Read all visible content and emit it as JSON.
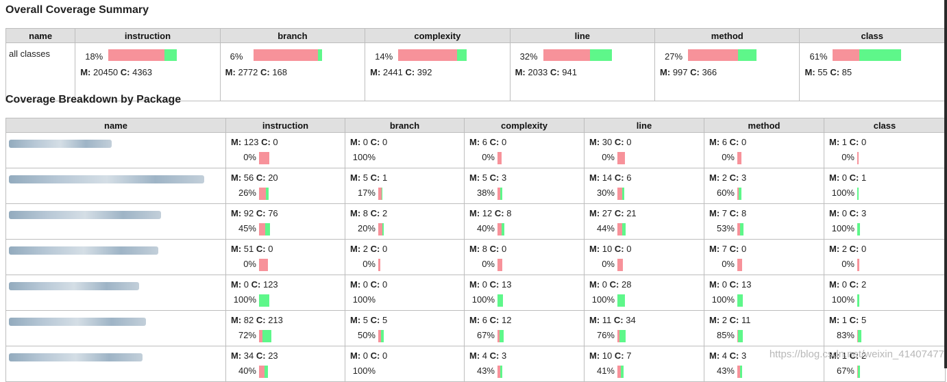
{
  "summary": {
    "title": "Overall Coverage Summary",
    "headers": [
      "name",
      "instruction",
      "branch",
      "complexity",
      "line",
      "method",
      "class"
    ],
    "row": {
      "name": "all classes",
      "cells": [
        {
          "pct": "18%",
          "missed": "20450",
          "covered": "4363",
          "fraction": 0.18
        },
        {
          "pct": "6%",
          "missed": "2772",
          "covered": "168",
          "fraction": 0.06
        },
        {
          "pct": "14%",
          "missed": "2441",
          "covered": "392",
          "fraction": 0.14
        },
        {
          "pct": "32%",
          "missed": "2033",
          "covered": "941",
          "fraction": 0.32
        },
        {
          "pct": "27%",
          "missed": "997",
          "covered": "366",
          "fraction": 0.27
        },
        {
          "pct": "61%",
          "missed": "55",
          "covered": "85",
          "fraction": 0.61
        }
      ]
    }
  },
  "breakdown": {
    "title": "Coverage Breakdown by Package",
    "headers": [
      "name",
      "instruction",
      "branch",
      "complexity",
      "line",
      "method",
      "class"
    ],
    "rows": [
      {
        "cells": [
          {
            "missed": "123",
            "covered": "0",
            "pct": "0%",
            "fraction": 0.0
          },
          {
            "missed": "0",
            "covered": "0",
            "pct": "100%",
            "fraction": 1.0
          },
          {
            "missed": "6",
            "covered": "0",
            "pct": "0%",
            "fraction": 0.0
          },
          {
            "missed": "30",
            "covered": "0",
            "pct": "0%",
            "fraction": 0.0
          },
          {
            "missed": "6",
            "covered": "0",
            "pct": "0%",
            "fraction": 0.0
          },
          {
            "missed": "1",
            "covered": "0",
            "pct": "0%",
            "fraction": 0.0
          }
        ]
      },
      {
        "cells": [
          {
            "missed": "56",
            "covered": "20",
            "pct": "26%",
            "fraction": 0.26
          },
          {
            "missed": "5",
            "covered": "1",
            "pct": "17%",
            "fraction": 0.17
          },
          {
            "missed": "5",
            "covered": "3",
            "pct": "38%",
            "fraction": 0.38
          },
          {
            "missed": "14",
            "covered": "6",
            "pct": "30%",
            "fraction": 0.3
          },
          {
            "missed": "2",
            "covered": "3",
            "pct": "60%",
            "fraction": 0.6
          },
          {
            "missed": "0",
            "covered": "1",
            "pct": "100%",
            "fraction": 1.0
          }
        ]
      },
      {
        "cells": [
          {
            "missed": "92",
            "covered": "76",
            "pct": "45%",
            "fraction": 0.45
          },
          {
            "missed": "8",
            "covered": "2",
            "pct": "20%",
            "fraction": 0.2
          },
          {
            "missed": "12",
            "covered": "8",
            "pct": "40%",
            "fraction": 0.4
          },
          {
            "missed": "27",
            "covered": "21",
            "pct": "44%",
            "fraction": 0.44
          },
          {
            "missed": "7",
            "covered": "8",
            "pct": "53%",
            "fraction": 0.53
          },
          {
            "missed": "0",
            "covered": "3",
            "pct": "100%",
            "fraction": 1.0
          }
        ]
      },
      {
        "cells": [
          {
            "missed": "51",
            "covered": "0",
            "pct": "0%",
            "fraction": 0.0
          },
          {
            "missed": "2",
            "covered": "0",
            "pct": "0%",
            "fraction": 0.0
          },
          {
            "missed": "8",
            "covered": "0",
            "pct": "0%",
            "fraction": 0.0
          },
          {
            "missed": "10",
            "covered": "0",
            "pct": "0%",
            "fraction": 0.0
          },
          {
            "missed": "7",
            "covered": "0",
            "pct": "0%",
            "fraction": 0.0
          },
          {
            "missed": "2",
            "covered": "0",
            "pct": "0%",
            "fraction": 0.0
          }
        ]
      },
      {
        "cells": [
          {
            "missed": "0",
            "covered": "123",
            "pct": "100%",
            "fraction": 1.0
          },
          {
            "missed": "0",
            "covered": "0",
            "pct": "100%",
            "fraction": 1.0
          },
          {
            "missed": "0",
            "covered": "13",
            "pct": "100%",
            "fraction": 1.0
          },
          {
            "missed": "0",
            "covered": "28",
            "pct": "100%",
            "fraction": 1.0
          },
          {
            "missed": "0",
            "covered": "13",
            "pct": "100%",
            "fraction": 1.0
          },
          {
            "missed": "0",
            "covered": "2",
            "pct": "100%",
            "fraction": 1.0
          }
        ]
      },
      {
        "cells": [
          {
            "missed": "82",
            "covered": "213",
            "pct": "72%",
            "fraction": 0.72
          },
          {
            "missed": "5",
            "covered": "5",
            "pct": "50%",
            "fraction": 0.5
          },
          {
            "missed": "6",
            "covered": "12",
            "pct": "67%",
            "fraction": 0.67
          },
          {
            "missed": "11",
            "covered": "34",
            "pct": "76%",
            "fraction": 0.76
          },
          {
            "missed": "2",
            "covered": "11",
            "pct": "85%",
            "fraction": 0.85
          },
          {
            "missed": "1",
            "covered": "5",
            "pct": "83%",
            "fraction": 0.83
          }
        ]
      },
      {
        "cells": [
          {
            "missed": "34",
            "covered": "23",
            "pct": "40%",
            "fraction": 0.4
          },
          {
            "missed": "0",
            "covered": "0",
            "pct": "100%",
            "fraction": 1.0
          },
          {
            "missed": "4",
            "covered": "3",
            "pct": "43%",
            "fraction": 0.43
          },
          {
            "missed": "10",
            "covered": "7",
            "pct": "41%",
            "fraction": 0.41
          },
          {
            "missed": "4",
            "covered": "3",
            "pct": "43%",
            "fraction": 0.43
          },
          {
            "missed": "1",
            "covered": "2",
            "pct": "67%",
            "fraction": 0.67
          }
        ]
      }
    ]
  },
  "labels": {
    "missed_prefix": "M:",
    "covered_prefix": "C:"
  },
  "watermark": "https://blog.csdn.net/weixin_41407477",
  "colors": {
    "missed": "#f7929a",
    "covered": "#5ef78a",
    "header_bg": "#e0e0e0"
  }
}
